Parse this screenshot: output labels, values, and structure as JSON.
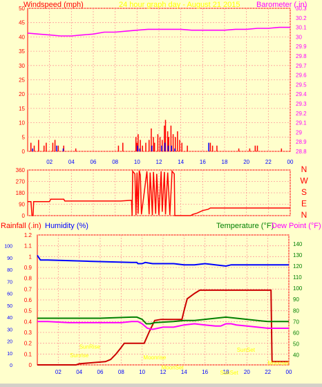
{
  "title": "24 hour graph day - August 21 2015",
  "colors": {
    "background": "#ffffcc",
    "grid": "#ff9999",
    "axis": "#ff0000",
    "wind": "#ff0000",
    "gust": "#0000ff",
    "barometer": "#ff00ff",
    "rain": "#cc0000",
    "humidity": "#0000ff",
    "temperature": "#008000",
    "dewpoint": "#ff00ff",
    "sun_label": "#ffff00"
  },
  "chart_data": [
    {
      "id": "wind",
      "type": "bar",
      "left_label": "Windspeed (mph)",
      "right_label": "Barometer (.in)",
      "x_ticks": [
        "02",
        "04",
        "06",
        "08",
        "10",
        "12",
        "14",
        "16",
        "18",
        "20",
        "22",
        "00"
      ],
      "xlim": [
        0,
        24
      ],
      "ylim_left": [
        0,
        50
      ],
      "yticks_left": [
        0,
        5,
        10,
        15,
        20,
        25,
        30,
        35,
        40,
        45,
        50
      ],
      "ylim_right": [
        28.8,
        30.3
      ],
      "yticks_right": [
        "28.8",
        "28.9",
        "29",
        "29.1",
        "29.2",
        "29.3",
        "29.4",
        "29.5",
        "29.6",
        "29.7",
        "29.8",
        "29.9",
        "30",
        "30.1",
        "30.2",
        "30.3"
      ],
      "wind_bars": [
        [
          0.3,
          3
        ],
        [
          0.6,
          2
        ],
        [
          1.0,
          4
        ],
        [
          1.5,
          2
        ],
        [
          1.7,
          3
        ],
        [
          2.3,
          3
        ],
        [
          2.5,
          4
        ],
        [
          2.8,
          2
        ],
        [
          3.3,
          2
        ],
        [
          4.4,
          1
        ],
        [
          8.3,
          2
        ],
        [
          8.7,
          3
        ],
        [
          9.9,
          5
        ],
        [
          10.0,
          3
        ],
        [
          10.1,
          6
        ],
        [
          10.3,
          4
        ],
        [
          10.5,
          2
        ],
        [
          10.8,
          3
        ],
        [
          11.1,
          4
        ],
        [
          11.3,
          8
        ],
        [
          11.5,
          5
        ],
        [
          11.6,
          3
        ],
        [
          11.9,
          6
        ],
        [
          12.1,
          5
        ],
        [
          12.3,
          4
        ],
        [
          12.5,
          9
        ],
        [
          12.6,
          11
        ],
        [
          12.8,
          7
        ],
        [
          12.9,
          5
        ],
        [
          13.1,
          9
        ],
        [
          13.3,
          6
        ],
        [
          13.5,
          5
        ],
        [
          13.7,
          7
        ],
        [
          13.9,
          4
        ],
        [
          14.1,
          3
        ],
        [
          14.6,
          2
        ],
        [
          16.7,
          3
        ],
        [
          16.9,
          2
        ],
        [
          17.3,
          2
        ],
        [
          19.3,
          1
        ],
        [
          20.3,
          1
        ],
        [
          20.8,
          2
        ],
        [
          21.0,
          2
        ],
        [
          23.2,
          1
        ]
      ],
      "gust_bars": [
        [
          0.4,
          1
        ],
        [
          2.6,
          2
        ],
        [
          3.2,
          1
        ],
        [
          10.0,
          2
        ],
        [
          10.2,
          1
        ],
        [
          11.3,
          2
        ],
        [
          12.2,
          2
        ],
        [
          12.5,
          3
        ],
        [
          12.8,
          2
        ],
        [
          13.1,
          2
        ],
        [
          13.4,
          1
        ],
        [
          16.5,
          3
        ]
      ],
      "barometer": [
        [
          0,
          30.04
        ],
        [
          1,
          30.03
        ],
        [
          2,
          30.02
        ],
        [
          3,
          30.01
        ],
        [
          4,
          30.01
        ],
        [
          5,
          30.02
        ],
        [
          6,
          30.03
        ],
        [
          7,
          30.05
        ],
        [
          8,
          30.05
        ],
        [
          9,
          30.06
        ],
        [
          10,
          30.07
        ],
        [
          11,
          30.08
        ],
        [
          12,
          30.08
        ],
        [
          13,
          30.08
        ],
        [
          14,
          30.08
        ],
        [
          15,
          30.07
        ],
        [
          16,
          30.07
        ],
        [
          17,
          30.07
        ],
        [
          18,
          30.07
        ],
        [
          19,
          30.08
        ],
        [
          20,
          30.08
        ],
        [
          21,
          30.09
        ],
        [
          22,
          30.09
        ],
        [
          23,
          30.1
        ],
        [
          24,
          30.1
        ]
      ]
    },
    {
      "id": "direction",
      "type": "line",
      "ylim": [
        0,
        360
      ],
      "yticks": [
        0,
        90,
        180,
        270,
        360
      ],
      "compass": [
        "N",
        "W",
        "S",
        "E",
        "N"
      ],
      "series": [
        {
          "name": "Wind direction",
          "points": [
            [
              0,
              110
            ],
            [
              0.3,
              110
            ],
            [
              0.4,
              0
            ],
            [
              0.5,
              0
            ],
            [
              0.55,
              110
            ],
            [
              2,
              110
            ],
            [
              2.1,
              130
            ],
            [
              3.3,
              130
            ],
            [
              3.4,
              115
            ],
            [
              8.5,
              115
            ],
            [
              9.3,
              120
            ],
            [
              9.5,
              120
            ],
            [
              9.55,
              0
            ],
            [
              9.6,
              350
            ],
            [
              9.8,
              330
            ],
            [
              9.9,
              5
            ],
            [
              10.0,
              340
            ],
            [
              10.1,
              15
            ],
            [
              10.2,
              355
            ],
            [
              10.3,
              320
            ],
            [
              10.4,
              10
            ],
            [
              10.9,
              350
            ],
            [
              11.1,
              10
            ],
            [
              11.2,
              340
            ],
            [
              11.4,
              5
            ],
            [
              11.5,
              345
            ],
            [
              11.7,
              15
            ],
            [
              11.8,
              330
            ],
            [
              12.0,
              5
            ],
            [
              12.2,
              350
            ],
            [
              12.3,
              30
            ],
            [
              12.5,
              345
            ],
            [
              12.6,
              10
            ],
            [
              12.8,
              340
            ],
            [
              13.0,
              5
            ],
            [
              13.2,
              350
            ],
            [
              13.4,
              330
            ],
            [
              13.45,
              0
            ],
            [
              14.9,
              0
            ],
            [
              15.1,
              10
            ],
            [
              15.5,
              20
            ],
            [
              16.0,
              40
            ],
            [
              16.5,
              50
            ],
            [
              16.7,
              60
            ],
            [
              24,
              60
            ]
          ]
        }
      ]
    },
    {
      "id": "env",
      "type": "line",
      "labels": {
        "rain": "Rainfall (.in)",
        "humidity": "Humidity (%)",
        "temperature": "Temperature (°F)",
        "dewpoint": "Dew Point (°F)"
      },
      "xlim": [
        0,
        24
      ],
      "x_ticks": [
        "02",
        "04",
        "06",
        "08",
        "10",
        "12",
        "14",
        "16",
        "18",
        "20",
        "22",
        "00"
      ],
      "humidity_ticks": [
        0,
        10,
        20,
        30,
        40,
        50,
        60,
        70,
        80,
        90,
        100
      ],
      "rain_ticks": [
        "0",
        "0.1",
        "0.2",
        "0.3",
        "0.4",
        "0.5",
        "0.6",
        "0.7",
        "0.8",
        "0.9",
        "1",
        "1.1",
        "1.2"
      ],
      "temp_ticks": [
        40,
        50,
        60,
        70,
        80,
        90,
        100,
        110,
        120,
        130,
        140
      ],
      "ylim_rain": [
        0,
        1.2
      ],
      "ylim_temp": [
        31,
        148
      ],
      "series": [
        {
          "name": "Rainfall",
          "axis": "rain",
          "points": [
            [
              0,
              0
            ],
            [
              3.7,
              0
            ],
            [
              4.0,
              0.01
            ],
            [
              6.5,
              0.03
            ],
            [
              7.0,
              0.05
            ],
            [
              7.5,
              0.1
            ],
            [
              8.0,
              0.16
            ],
            [
              8.3,
              0.2
            ],
            [
              10.2,
              0.2
            ],
            [
              10.7,
              0.31
            ],
            [
              11.2,
              0.41
            ],
            [
              11.8,
              0.42
            ],
            [
              13.8,
              0.42
            ],
            [
              14.0,
              0.5
            ],
            [
              14.3,
              0.61
            ],
            [
              15.0,
              0.66
            ],
            [
              15.5,
              0.69
            ],
            [
              22.3,
              0.69
            ],
            [
              22.4,
              0.03
            ],
            [
              24,
              0.03
            ]
          ]
        },
        {
          "name": "Humidity",
          "axis": "humidity",
          "points": [
            [
              0,
              92
            ],
            [
              0.3,
              88
            ],
            [
              1,
              88
            ],
            [
              5,
              87
            ],
            [
              9,
              86
            ],
            [
              9.5,
              86
            ],
            [
              9.6,
              85
            ],
            [
              10,
              85
            ],
            [
              10.3,
              86
            ],
            [
              11,
              85
            ],
            [
              12,
              85
            ],
            [
              13,
              85
            ],
            [
              14,
              84
            ],
            [
              15,
              84
            ],
            [
              16,
              85
            ],
            [
              17,
              84
            ],
            [
              18,
              83
            ],
            [
              18.5,
              84
            ],
            [
              19,
              84
            ],
            [
              24,
              84
            ]
          ]
        },
        {
          "name": "Temperature",
          "axis": "temp",
          "points": [
            [
              0,
              73
            ],
            [
              2,
              73
            ],
            [
              6,
              73
            ],
            [
              9,
              74
            ],
            [
              9.5,
              74
            ],
            [
              10,
              72
            ],
            [
              10.4,
              68
            ],
            [
              10.8,
              68
            ],
            [
              11.2,
              69
            ],
            [
              13,
              70
            ],
            [
              14,
              71
            ],
            [
              15,
              71
            ],
            [
              16,
              72
            ],
            [
              17,
              73
            ],
            [
              18,
              74
            ],
            [
              19,
              73
            ],
            [
              20,
              72
            ],
            [
              21,
              71
            ],
            [
              22,
              70
            ],
            [
              24,
              70
            ]
          ]
        },
        {
          "name": "Dew Point",
          "axis": "temp",
          "points": [
            [
              0,
              70
            ],
            [
              1,
              70
            ],
            [
              3,
              69
            ],
            [
              6,
              69
            ],
            [
              8,
              69
            ],
            [
              9,
              70
            ],
            [
              9.6,
              70
            ],
            [
              10.0,
              68
            ],
            [
              10.5,
              64
            ],
            [
              11.0,
              63
            ],
            [
              11.5,
              64
            ],
            [
              12,
              65
            ],
            [
              13,
              65
            ],
            [
              14,
              67
            ],
            [
              15,
              68
            ],
            [
              16,
              67
            ],
            [
              17,
              66
            ],
            [
              17.5,
              66
            ],
            [
              18,
              68
            ],
            [
              18.5,
              68
            ],
            [
              19,
              67
            ],
            [
              20,
              66
            ],
            [
              21,
              65
            ],
            [
              22,
              64
            ],
            [
              23,
              64
            ],
            [
              24,
              64
            ]
          ]
        }
      ],
      "sun_labels": [
        {
          "text": "SunRise",
          "x": 5.0,
          "y_rain": 0.15
        },
        {
          "text": "Sunrise",
          "x": 4.0,
          "y_rain": 0.07
        },
        {
          "text": "SunSet",
          "x": 19.9,
          "y_rain": 0.12
        },
        {
          "text": "SunSet",
          "x": 18.3,
          "y_rain": -0.09
        },
        {
          "text": "Moonrise",
          "x": 11.2,
          "y_rain": 0.05
        },
        {
          "text": "MoonSet",
          "x": 12.9,
          "y_rain": -0.04
        },
        {
          "text": "Moonset",
          "x": 23.0,
          "y_rain": 0.0
        }
      ]
    }
  ]
}
